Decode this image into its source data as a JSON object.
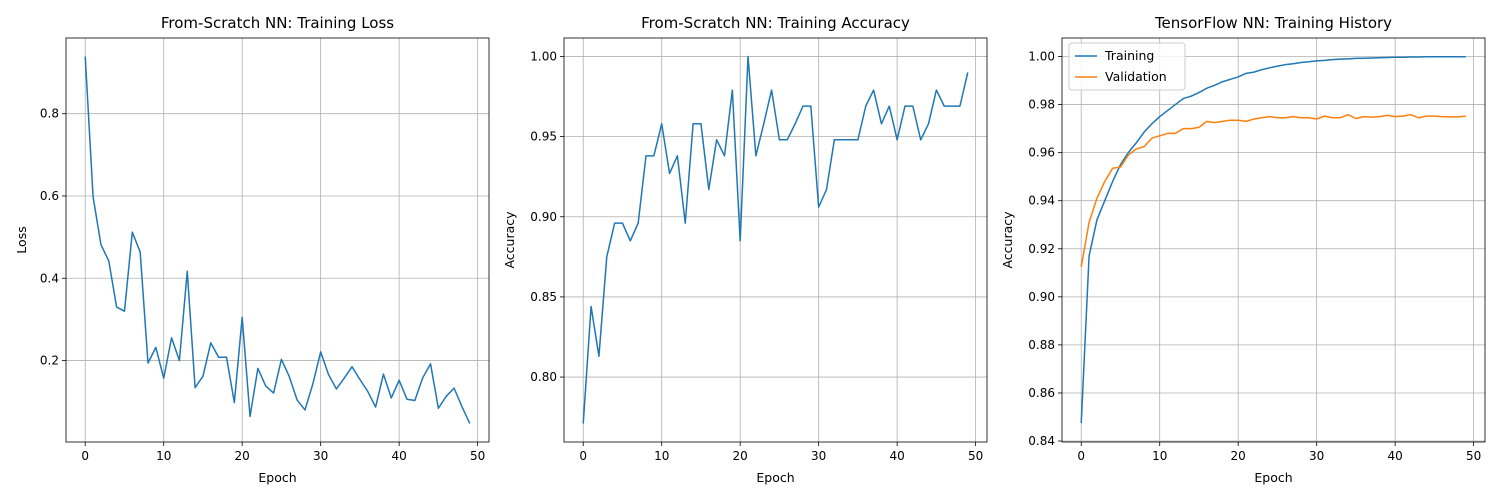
{
  "chart_data": [
    {
      "type": "line",
      "title": "From-Scratch NN: Training Loss",
      "xlabel": "Epoch",
      "ylabel": "Loss",
      "xlim": [
        -2.45,
        51.45
      ],
      "ylim": [
        0.002,
        0.984
      ],
      "xticks": [
        0,
        10,
        20,
        30,
        40,
        50
      ],
      "yticks": [
        0.2,
        0.4,
        0.6,
        0.8
      ],
      "grid": true,
      "legend": null,
      "series": [
        {
          "color": "#1f77b4",
          "x": [
            0,
            1,
            2,
            3,
            4,
            5,
            6,
            7,
            8,
            9,
            10,
            11,
            12,
            13,
            14,
            15,
            16,
            17,
            18,
            19,
            20,
            21,
            22,
            23,
            24,
            25,
            26,
            27,
            28,
            29,
            30,
            31,
            32,
            33,
            34,
            35,
            36,
            37,
            38,
            39,
            40,
            41,
            42,
            43,
            44,
            45,
            46,
            47,
            48,
            49
          ],
          "values": [
            0.939,
            0.598,
            0.482,
            0.442,
            0.33,
            0.32,
            0.512,
            0.464,
            0.194,
            0.232,
            0.157,
            0.255,
            0.2,
            0.417,
            0.134,
            0.162,
            0.243,
            0.208,
            0.208,
            0.098,
            0.305,
            0.064,
            0.181,
            0.138,
            0.121,
            0.203,
            0.161,
            0.104,
            0.08,
            0.143,
            0.221,
            0.166,
            0.131,
            0.157,
            0.185,
            0.154,
            0.125,
            0.087,
            0.167,
            0.109,
            0.152,
            0.106,
            0.103,
            0.158,
            0.192,
            0.084,
            0.113,
            0.133,
            0.088,
            0.047
          ]
        }
      ]
    },
    {
      "type": "line",
      "title": "From-Scratch NN: Training Accuracy",
      "xlabel": "Epoch",
      "ylabel": "Accuracy",
      "xlim": [
        -2.45,
        51.45
      ],
      "ylim": [
        0.7595,
        1.0115
      ],
      "xticks": [
        0,
        10,
        20,
        30,
        40,
        50
      ],
      "yticks": [
        0.8,
        0.85,
        0.9,
        0.95,
        1.0
      ],
      "ytick_labels": [
        "0.80",
        "0.85",
        "0.90",
        "0.95",
        "1.00"
      ],
      "grid": true,
      "legend": null,
      "series": [
        {
          "color": "#1f77b4",
          "x": [
            0,
            1,
            2,
            3,
            4,
            5,
            6,
            7,
            8,
            9,
            10,
            11,
            12,
            13,
            14,
            15,
            16,
            17,
            18,
            19,
            20,
            21,
            22,
            23,
            24,
            25,
            26,
            27,
            28,
            29,
            30,
            31,
            32,
            33,
            34,
            35,
            36,
            37,
            38,
            39,
            40,
            41,
            42,
            43,
            44,
            45,
            46,
            47,
            48,
            49
          ],
          "values": [
            0.771,
            0.844,
            0.813,
            0.875,
            0.896,
            0.896,
            0.885,
            0.896,
            0.938,
            0.938,
            0.958,
            0.927,
            0.938,
            0.896,
            0.958,
            0.958,
            0.917,
            0.948,
            0.938,
            0.979,
            0.885,
            1.0,
            0.938,
            0.958,
            0.979,
            0.948,
            0.948,
            0.958,
            0.969,
            0.969,
            0.906,
            0.917,
            0.948,
            0.948,
            0.948,
            0.948,
            0.969,
            0.979,
            0.958,
            0.969,
            0.948,
            0.969,
            0.969,
            0.948,
            0.958,
            0.979,
            0.969,
            0.969,
            0.969,
            0.99
          ]
        }
      ]
    },
    {
      "type": "line",
      "title": "TensorFlow NN: Training History",
      "xlabel": "Epoch",
      "ylabel": "Accuracy",
      "xlim": [
        -2.45,
        51.45
      ],
      "ylim": [
        0.8396,
        1.0077
      ],
      "xticks": [
        0,
        10,
        20,
        30,
        40,
        50
      ],
      "yticks": [
        0.84,
        0.86,
        0.88,
        0.9,
        0.92,
        0.94,
        0.96,
        0.98,
        1.0
      ],
      "ytick_labels": [
        "0.84",
        "0.86",
        "0.88",
        "0.90",
        "0.92",
        "0.94",
        "0.96",
        "0.98",
        "1.00"
      ],
      "grid": true,
      "legend": "top-left",
      "series": [
        {
          "name": "Training",
          "color": "#1f77b4",
          "x": [
            0,
            1,
            2,
            3,
            4,
            5,
            6,
            7,
            8,
            9,
            10,
            11,
            12,
            13,
            14,
            15,
            16,
            17,
            18,
            19,
            20,
            21,
            22,
            23,
            24,
            25,
            26,
            27,
            28,
            29,
            30,
            31,
            32,
            33,
            34,
            35,
            36,
            37,
            38,
            39,
            40,
            41,
            42,
            43,
            44,
            45,
            46,
            47,
            48,
            49
          ],
          "values": [
            0.8475,
            0.917,
            0.932,
            0.94,
            0.948,
            0.955,
            0.96,
            0.964,
            0.9685,
            0.972,
            0.975,
            0.9775,
            0.98,
            0.9825,
            0.9835,
            0.985,
            0.9868,
            0.988,
            0.9895,
            0.9905,
            0.9915,
            0.993,
            0.9935,
            0.9945,
            0.9953,
            0.996,
            0.9966,
            0.997,
            0.9975,
            0.9978,
            0.9982,
            0.9984,
            0.9987,
            0.9989,
            0.999,
            0.9992,
            0.9993,
            0.9994,
            0.9995,
            0.9996,
            0.9997,
            0.9997,
            0.9998,
            0.9998,
            0.9999,
            0.9999,
            0.9999,
            0.9999,
            0.9999,
            0.9999
          ]
        },
        {
          "name": "Validation",
          "color": "#ff7f0e",
          "x": [
            0,
            1,
            2,
            3,
            4,
            5,
            6,
            7,
            8,
            9,
            10,
            11,
            12,
            13,
            14,
            15,
            16,
            17,
            18,
            19,
            20,
            21,
            22,
            23,
            24,
            25,
            26,
            27,
            28,
            29,
            30,
            31,
            32,
            33,
            34,
            35,
            36,
            37,
            38,
            39,
            40,
            41,
            42,
            43,
            44,
            45,
            46,
            47,
            48,
            49
          ],
          "values": [
            0.9125,
            0.931,
            0.941,
            0.948,
            0.9535,
            0.954,
            0.959,
            0.9615,
            0.9625,
            0.966,
            0.967,
            0.968,
            0.968,
            0.97,
            0.97,
            0.9705,
            0.973,
            0.9725,
            0.973,
            0.9735,
            0.9735,
            0.973,
            0.974,
            0.9745,
            0.975,
            0.9745,
            0.9745,
            0.975,
            0.9745,
            0.9745,
            0.974,
            0.9752,
            0.9745,
            0.9745,
            0.9758,
            0.9742,
            0.975,
            0.9748,
            0.975,
            0.9755,
            0.975,
            0.9752,
            0.9758,
            0.9745,
            0.9752,
            0.9752,
            0.975,
            0.9749,
            0.9749,
            0.9752
          ]
        }
      ]
    }
  ]
}
